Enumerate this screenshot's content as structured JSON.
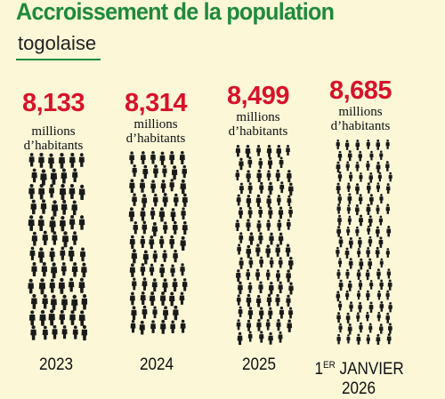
{
  "header": {
    "title": "Accroissement de la population",
    "subtitle": "togolaise"
  },
  "chart_data": {
    "type": "pictogram",
    "title": "Accroissement de la population togolaise",
    "unit": "millions d’habitants",
    "categories": [
      "2023",
      "2024",
      "2025",
      "1ER JANVIER 2026"
    ],
    "values": [
      8.133,
      8.314,
      8.499,
      8.685
    ],
    "value_labels": [
      "8,133",
      "8,314",
      "8,499",
      "8,685"
    ],
    "year_labels": [
      {
        "main": "2023",
        "sup": ""
      },
      {
        "main": "2024",
        "sup": ""
      },
      {
        "main": "2025",
        "sup": ""
      },
      {
        "main": "1",
        "sup": "ER",
        "rest": " JANVIER",
        "line2": "2026"
      }
    ],
    "colors": {
      "value": "#d7132a",
      "title": "#1f8a3c",
      "figures": "#1a1a1a",
      "background": "#fbf7d7"
    }
  },
  "unit_line1": "millions",
  "unit_line2": "d’habitants"
}
